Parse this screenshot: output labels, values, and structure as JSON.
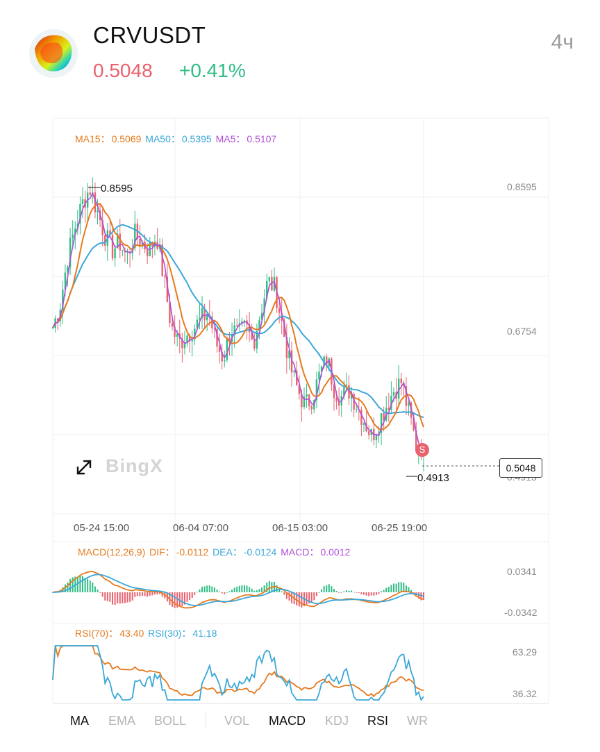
{
  "header": {
    "symbol": "CRVUSDT",
    "price": "0.5048",
    "change": "+0.41%",
    "interval": "4ч",
    "price_color": "#e8626e",
    "change_color": "#2ebd85"
  },
  "legends": {
    "ma": [
      {
        "label": "MA15：",
        "value": "0.5069",
        "color": "#e57a1e"
      },
      {
        "label": "MA50：",
        "value": "0.5395",
        "color": "#3aa7d8"
      },
      {
        "label": "MA5：",
        "value": "0.5107",
        "color": "#b04fd6"
      }
    ],
    "macd": [
      {
        "label": "MACD(12,26,9)",
        "value": "",
        "color": "#e57a1e"
      },
      {
        "label": "DIF：",
        "value": "-0.0112",
        "color": "#e57a1e"
      },
      {
        "label": "DEA：",
        "value": "-0.0124",
        "color": "#3aa7d8"
      },
      {
        "label": "MACD：",
        "value": "0.0012",
        "color": "#b04fd6"
      }
    ],
    "rsi": [
      {
        "label": "RSI(70)：",
        "value": "43.40",
        "color": "#e57a1e"
      },
      {
        "label": "RSI(30)：",
        "value": "41.18",
        "color": "#3aa7d8"
      }
    ]
  },
  "price_tag": "0.5048",
  "watermark": "BingX",
  "sell_marker": "S",
  "tabs": [
    {
      "label": "MA",
      "active": true
    },
    {
      "label": "EMA",
      "active": false
    },
    {
      "label": "BOLL",
      "active": false
    },
    {
      "label": "VOL",
      "active": false
    },
    {
      "label": "MACD",
      "active": true
    },
    {
      "label": "KDJ",
      "active": false
    },
    {
      "label": "RSI",
      "active": true
    },
    {
      "label": "WR",
      "active": false
    }
  ],
  "chart_data": {
    "type": "candlestick",
    "price_axis_labels": [
      "0.8595",
      "0.6754",
      "0.4913"
    ],
    "high_annotation": "0.8595",
    "low_annotation": "0.4913",
    "x_ticks": [
      "05-24 15:00",
      "06-04 07:00",
      "06-15 03:00",
      "06-25 19:00"
    ],
    "ylim": [
      0.42,
      0.93
    ],
    "close_path": [
      0.66,
      0.69,
      0.75,
      0.79,
      0.82,
      0.84,
      0.81,
      0.78,
      0.76,
      0.77,
      0.75,
      0.78,
      0.77,
      0.76,
      0.78,
      0.72,
      0.66,
      0.64,
      0.65,
      0.66,
      0.67,
      0.68,
      0.64,
      0.62,
      0.66,
      0.65,
      0.66,
      0.64,
      0.68,
      0.72,
      0.71,
      0.66,
      0.61,
      0.58,
      0.56,
      0.57,
      0.6,
      0.62,
      0.58,
      0.57,
      0.58,
      0.56,
      0.54,
      0.52,
      0.54,
      0.56,
      0.58,
      0.59,
      0.55,
      0.51,
      0.5048
    ],
    "ma5": "0.5107",
    "ma15": "0.5069",
    "ma50": "0.5395",
    "macd_axis_labels": [
      "0.0341",
      "-0.0342"
    ],
    "macd": {
      "dif": "-0.0112",
      "dea": "-0.0124",
      "hist": "0.0012"
    },
    "rsi_axis_labels": [
      "63.29",
      "36.32"
    ],
    "rsi": {
      "rsi70": "43.40",
      "rsi30": "41.18"
    }
  }
}
